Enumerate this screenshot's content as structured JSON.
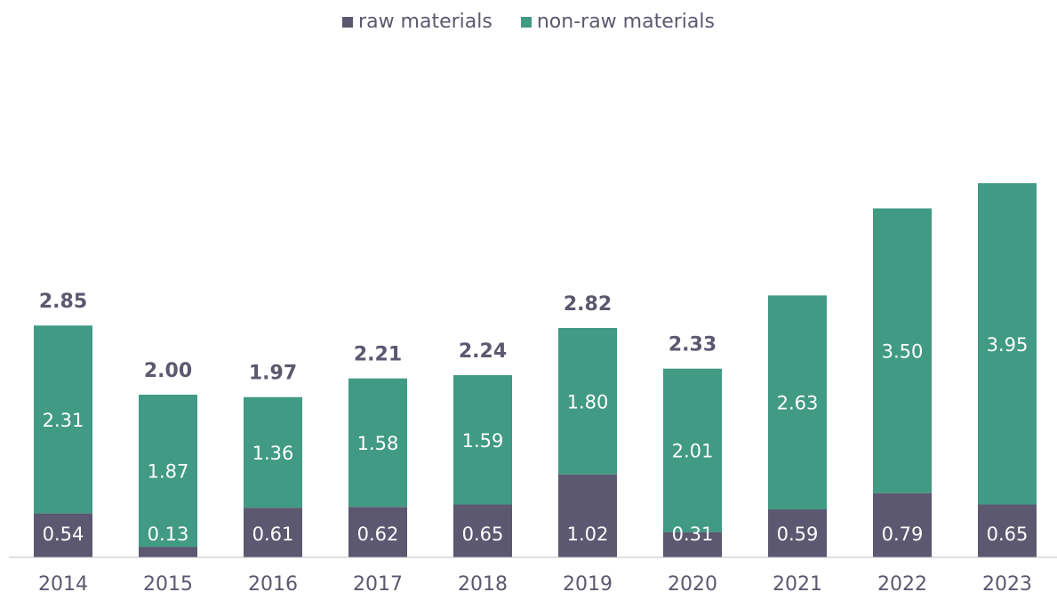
{
  "chart_data": {
    "type": "bar",
    "stacked": true,
    "categories": [
      "2014",
      "2015",
      "2016",
      "2017",
      "2018",
      "2019",
      "2020",
      "2021",
      "2022",
      "2023"
    ],
    "series": [
      {
        "name": "raw materials",
        "color": "#5b5870",
        "values": [
          0.54,
          0.13,
          0.61,
          0.62,
          0.65,
          1.02,
          0.31,
          0.59,
          0.79,
          0.65
        ],
        "labels": [
          "0.54",
          "0.13",
          "0.61",
          "0.62",
          "0.65",
          "1.02",
          "0.31",
          "0.59",
          "0.79",
          "0.65"
        ]
      },
      {
        "name": "non-raw materials",
        "color": "#419a84",
        "values": [
          2.31,
          1.87,
          1.36,
          1.58,
          1.59,
          1.8,
          2.01,
          2.63,
          3.5,
          3.95
        ],
        "labels": [
          "2.31",
          "1.87",
          "1.36",
          "1.58",
          "1.59",
          "1.80",
          "2.01",
          "2.63",
          "3.50",
          "3.95"
        ]
      }
    ],
    "totals": [
      2.85,
      2.0,
      1.97,
      2.21,
      2.24,
      2.82,
      2.33,
      null,
      null,
      null
    ],
    "total_labels": [
      "2.85",
      "2.00",
      "1.97",
      "2.21",
      "2.24",
      "2.82",
      "2.33",
      "",
      "",
      ""
    ],
    "ylim": [
      0,
      4.6
    ],
    "grid": false,
    "legend_position": "top-center",
    "title": "",
    "xlabel": "",
    "ylabel": ""
  }
}
